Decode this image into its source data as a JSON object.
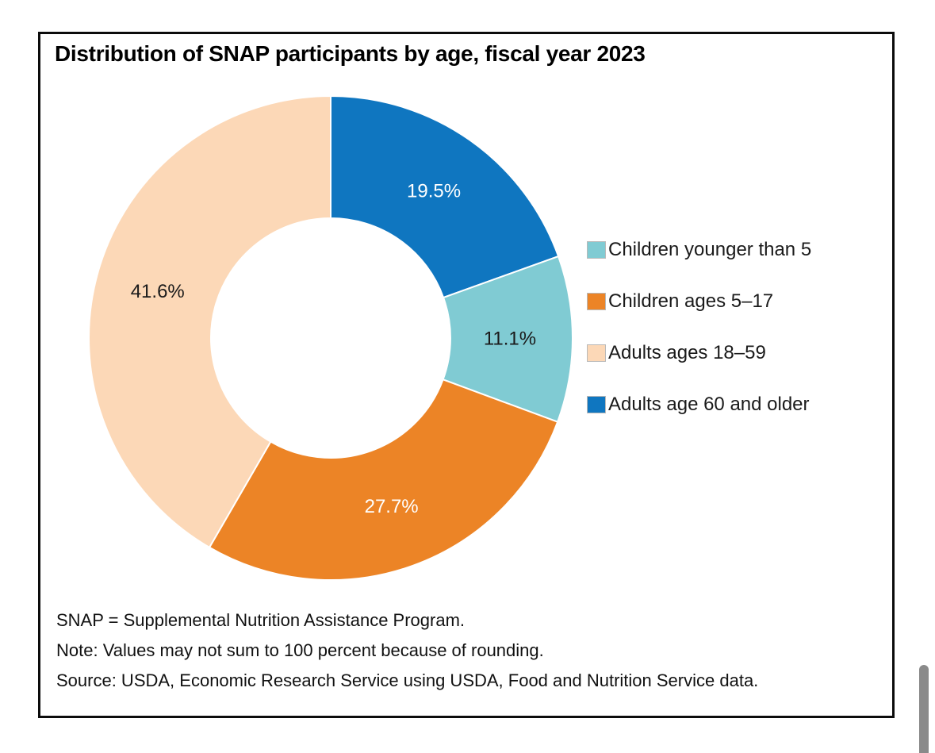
{
  "title": "Distribution of SNAP participants by age, fiscal year 2023",
  "chart_data": {
    "type": "donut",
    "title": "Distribution of SNAP participants by age, fiscal year 2023",
    "start_angle_deg": 0,
    "clockwise": true,
    "inner_radius_ratio": 0.495,
    "separator_color": "#ffffff",
    "legend_position": "right",
    "segments": [
      {
        "label": "Adults age 60 and older",
        "value": 19.5,
        "display": "19.5%",
        "color": "#0f76c0",
        "label_color": "#ffffff"
      },
      {
        "label": "Children younger than 5",
        "value": 11.1,
        "display": "11.1%",
        "color": "#80cbd3",
        "label_color": "#1a1a1a"
      },
      {
        "label": "Children ages 5–17",
        "value": 27.7,
        "display": "27.7%",
        "color": "#ec8426",
        "label_color": "#ffffff"
      },
      {
        "label": "Adults ages 18–59",
        "value": 41.6,
        "display": "41.6%",
        "color": "#fcd8b7",
        "label_color": "#1a1a1a"
      }
    ],
    "legend_order": [
      1,
      2,
      3,
      0
    ]
  },
  "notes": {
    "line1": "SNAP = Supplemental Nutrition Assistance Program.",
    "line2": "Note: Values may not sum to 100 percent because of rounding.",
    "line3": "Source: USDA, Economic Research Service using USDA, Food and Nutrition Service data."
  },
  "scrollbar": {
    "color": "#8a8a8a"
  }
}
